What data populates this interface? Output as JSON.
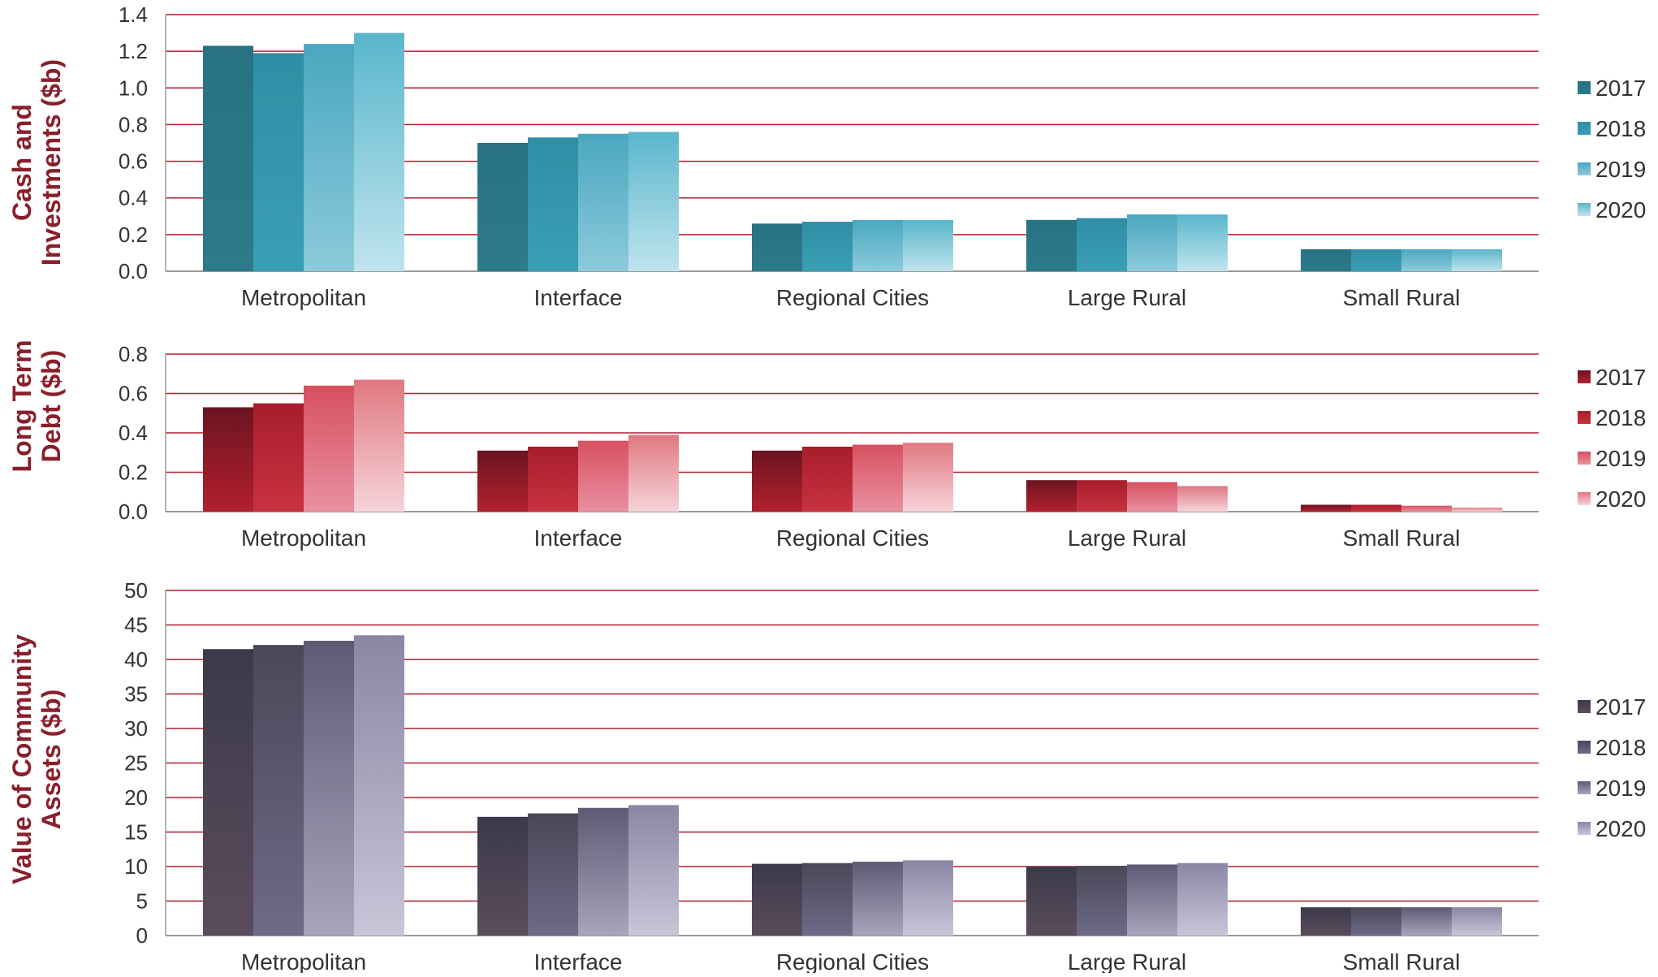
{
  "chart_data": [
    {
      "type": "bar",
      "ylabel": [
        "Cash and",
        "Investments ($b)"
      ],
      "categories": [
        "Metropolitan",
        "Interface",
        "Regional Cities",
        "Large Rural",
        "Small Rural"
      ],
      "ylim": [
        0,
        1.4
      ],
      "yticks": [
        "0.0",
        "0.2",
        "0.4",
        "0.6",
        "0.8",
        "1.0",
        "1.2",
        "1.4"
      ],
      "grid": true,
      "legend_position": "right",
      "series": [
        {
          "name": "2017",
          "values": [
            1.23,
            0.7,
            0.26,
            0.28,
            0.12
          ]
        },
        {
          "name": "2018",
          "values": [
            1.19,
            0.73,
            0.27,
            0.29,
            0.12
          ]
        },
        {
          "name": "2019",
          "values": [
            1.24,
            0.75,
            0.28,
            0.31,
            0.12
          ]
        },
        {
          "name": "2020",
          "values": [
            1.3,
            0.76,
            0.28,
            0.31,
            0.12
          ]
        }
      ],
      "colors": [
        [
          "#287283",
          "#2c7a8a"
        ],
        [
          "#2f8ea5",
          "#3a9fb5"
        ],
        [
          "#4aa7c0",
          "#8ccadb"
        ],
        [
          "#5ab6cc",
          "#bfe4ee"
        ]
      ],
      "grid_color": "#b01e2f"
    },
    {
      "type": "bar",
      "ylabel": [
        "Long Term",
        "Debt ($b)"
      ],
      "categories": [
        "Metropolitan",
        "Interface",
        "Regional Cities",
        "Large Rural",
        "Small Rural"
      ],
      "ylim": [
        0,
        0.8
      ],
      "yticks": [
        "0.0",
        "0.2",
        "0.4",
        "0.6",
        "0.8"
      ],
      "grid": true,
      "legend_position": "right",
      "series": [
        {
          "name": "2017",
          "values": [
            0.53,
            0.31,
            0.31,
            0.16,
            0.035
          ]
        },
        {
          "name": "2018",
          "values": [
            0.55,
            0.33,
            0.33,
            0.16,
            0.035
          ]
        },
        {
          "name": "2019",
          "values": [
            0.64,
            0.36,
            0.34,
            0.15,
            0.03
          ]
        },
        {
          "name": "2020",
          "values": [
            0.67,
            0.39,
            0.35,
            0.13,
            0.02
          ]
        }
      ],
      "colors": [
        [
          "#6b1420",
          "#b3202f"
        ],
        [
          "#a81d2c",
          "#c83240"
        ],
        [
          "#d85060",
          "#e890a0"
        ],
        [
          "#e07880",
          "#f6d4da"
        ]
      ],
      "grid_color": "#b01e2f"
    },
    {
      "type": "bar",
      "ylabel": [
        "Value of Community",
        "Assets ($b)"
      ],
      "categories": [
        "Metropolitan",
        "Interface",
        "Regional Cities",
        "Large Rural",
        "Small Rural"
      ],
      "ylim": [
        0,
        50
      ],
      "yticks": [
        "0",
        "5",
        "10",
        "15",
        "20",
        "25",
        "30",
        "35",
        "40",
        "45",
        "50"
      ],
      "grid": true,
      "legend_position": "right",
      "series": [
        {
          "name": "2017",
          "values": [
            41.5,
            17.2,
            10.4,
            10.0,
            4.1
          ]
        },
        {
          "name": "2018",
          "values": [
            42.1,
            17.7,
            10.5,
            10.1,
            4.1
          ]
        },
        {
          "name": "2019",
          "values": [
            42.7,
            18.5,
            10.7,
            10.3,
            4.1
          ]
        },
        {
          "name": "2020",
          "values": [
            43.5,
            18.9,
            10.9,
            10.5,
            4.1
          ]
        }
      ],
      "colors": [
        [
          "#3b3a4a",
          "#5b4c5c"
        ],
        [
          "#4a4858",
          "#6e6a88"
        ],
        [
          "#5d5a74",
          "#a8a4bc"
        ],
        [
          "#8a86a4",
          "#c8c6d8"
        ]
      ],
      "grid_color": "#b01e2f"
    }
  ]
}
